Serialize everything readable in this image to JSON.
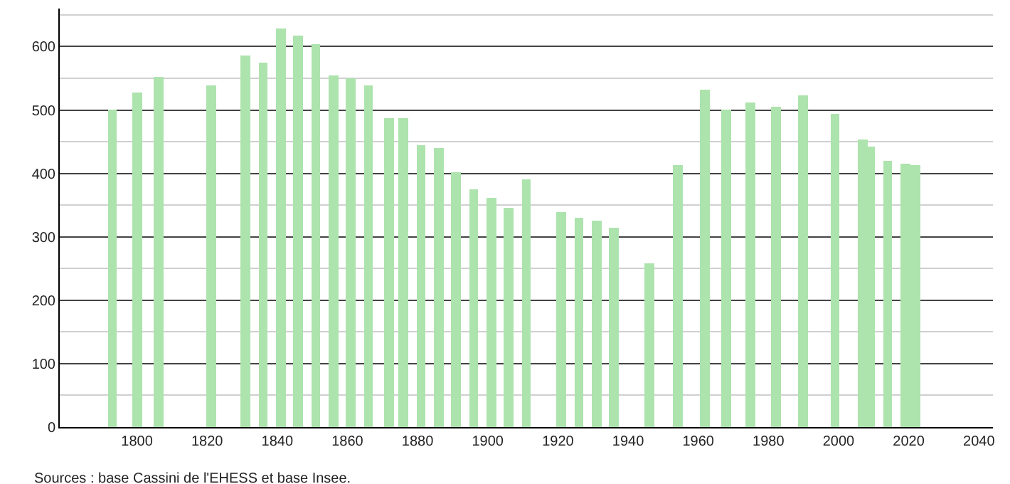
{
  "chart_data": {
    "type": "bar",
    "x": [
      1793,
      1800,
      1806,
      1821,
      1831,
      1836,
      1841,
      1846,
      1851,
      1856,
      1861,
      1866,
      1872,
      1876,
      1881,
      1886,
      1891,
      1896,
      1901,
      1906,
      1911,
      1921,
      1926,
      1931,
      1936,
      1946,
      1954,
      1962,
      1968,
      1975,
      1982,
      1990,
      1999,
      2007,
      2009,
      2014,
      2019,
      2022
    ],
    "values": [
      501,
      528,
      553,
      539,
      586,
      575,
      628,
      618,
      604,
      555,
      549,
      539,
      488,
      488,
      445,
      440,
      402,
      374,
      361,
      346,
      391,
      339,
      330,
      325,
      315,
      258,
      413,
      533,
      500,
      512,
      505,
      524,
      494,
      453,
      443,
      419,
      416,
      414
    ],
    "color": "#ade3ad",
    "xlim": [
      1778,
      2044
    ],
    "xticks": [
      1800,
      1820,
      1840,
      1860,
      1880,
      1900,
      1920,
      1940,
      1960,
      1980,
      2000,
      2020,
      2040
    ],
    "ylim": [
      0,
      660
    ],
    "yticks": [
      0,
      100,
      200,
      300,
      400,
      500,
      600
    ],
    "grid": "y",
    "annotations": [
      "Sources : base Cassini de l'EHESS et base Insee."
    ]
  }
}
